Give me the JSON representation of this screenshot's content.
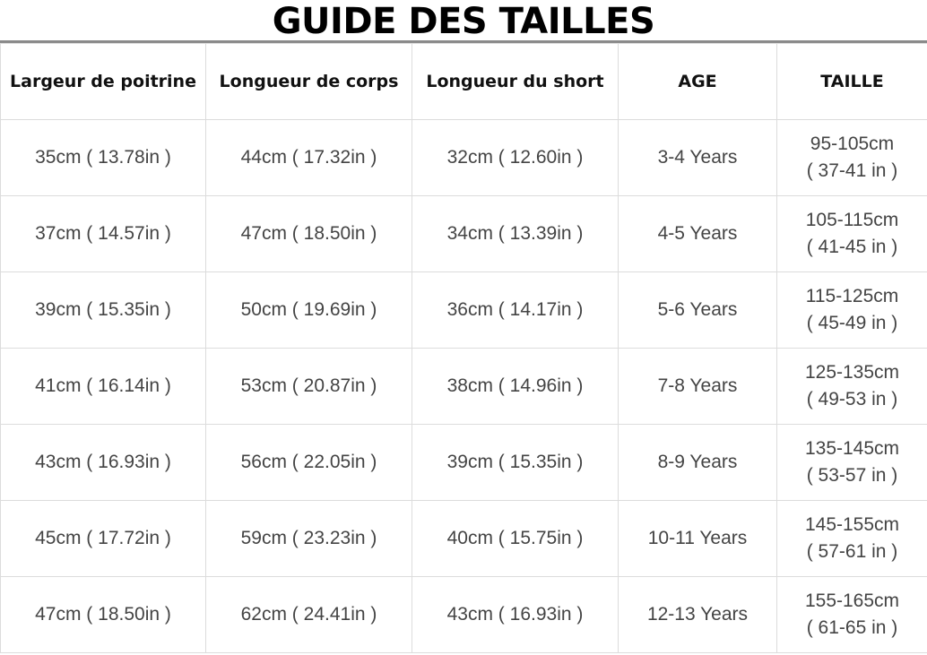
{
  "title": "GUIDE DES TAILLES",
  "headers": [
    "Largeur de poitrine",
    "Longueur de corps",
    "Longueur du short",
    "AGE",
    "TAILLE"
  ],
  "rows": [
    {
      "chest": "35cm ( 13.78in )",
      "body": "44cm ( 17.32in )",
      "shorts": "32cm ( 12.60in )",
      "age": "3-4 Years",
      "height_cm": "95-105cm",
      "height_in": "( 37-41 in )"
    },
    {
      "chest": "37cm ( 14.57in )",
      "body": "47cm ( 18.50in )",
      "shorts": "34cm ( 13.39in )",
      "age": "4-5 Years",
      "height_cm": "105-115cm",
      "height_in": "( 41-45 in )"
    },
    {
      "chest": "39cm ( 15.35in )",
      "body": "50cm ( 19.69in )",
      "shorts": "36cm ( 14.17in )",
      "age": "5-6 Years",
      "height_cm": "115-125cm",
      "height_in": "( 45-49 in )"
    },
    {
      "chest": "41cm ( 16.14in )",
      "body": "53cm ( 20.87in )",
      "shorts": "38cm ( 14.96in )",
      "age": "7-8 Years",
      "height_cm": "125-135cm",
      "height_in": "( 49-53 in )"
    },
    {
      "chest": "43cm ( 16.93in )",
      "body": "56cm ( 22.05in )",
      "shorts": "39cm ( 15.35in )",
      "age": "8-9 Years",
      "height_cm": "135-145cm",
      "height_in": "( 53-57 in )"
    },
    {
      "chest": "45cm ( 17.72in )",
      "body": "59cm ( 23.23in )",
      "shorts": "40cm ( 15.75in )",
      "age": "10-11 Years",
      "height_cm": "145-155cm",
      "height_in": "( 57-61 in )"
    },
    {
      "chest": "47cm ( 18.50in )",
      "body": "62cm ( 24.41in )",
      "shorts": "43cm ( 16.93in )",
      "age": "12-13 Years",
      "height_cm": "155-165cm",
      "height_in": "( 61-65 in )"
    }
  ]
}
